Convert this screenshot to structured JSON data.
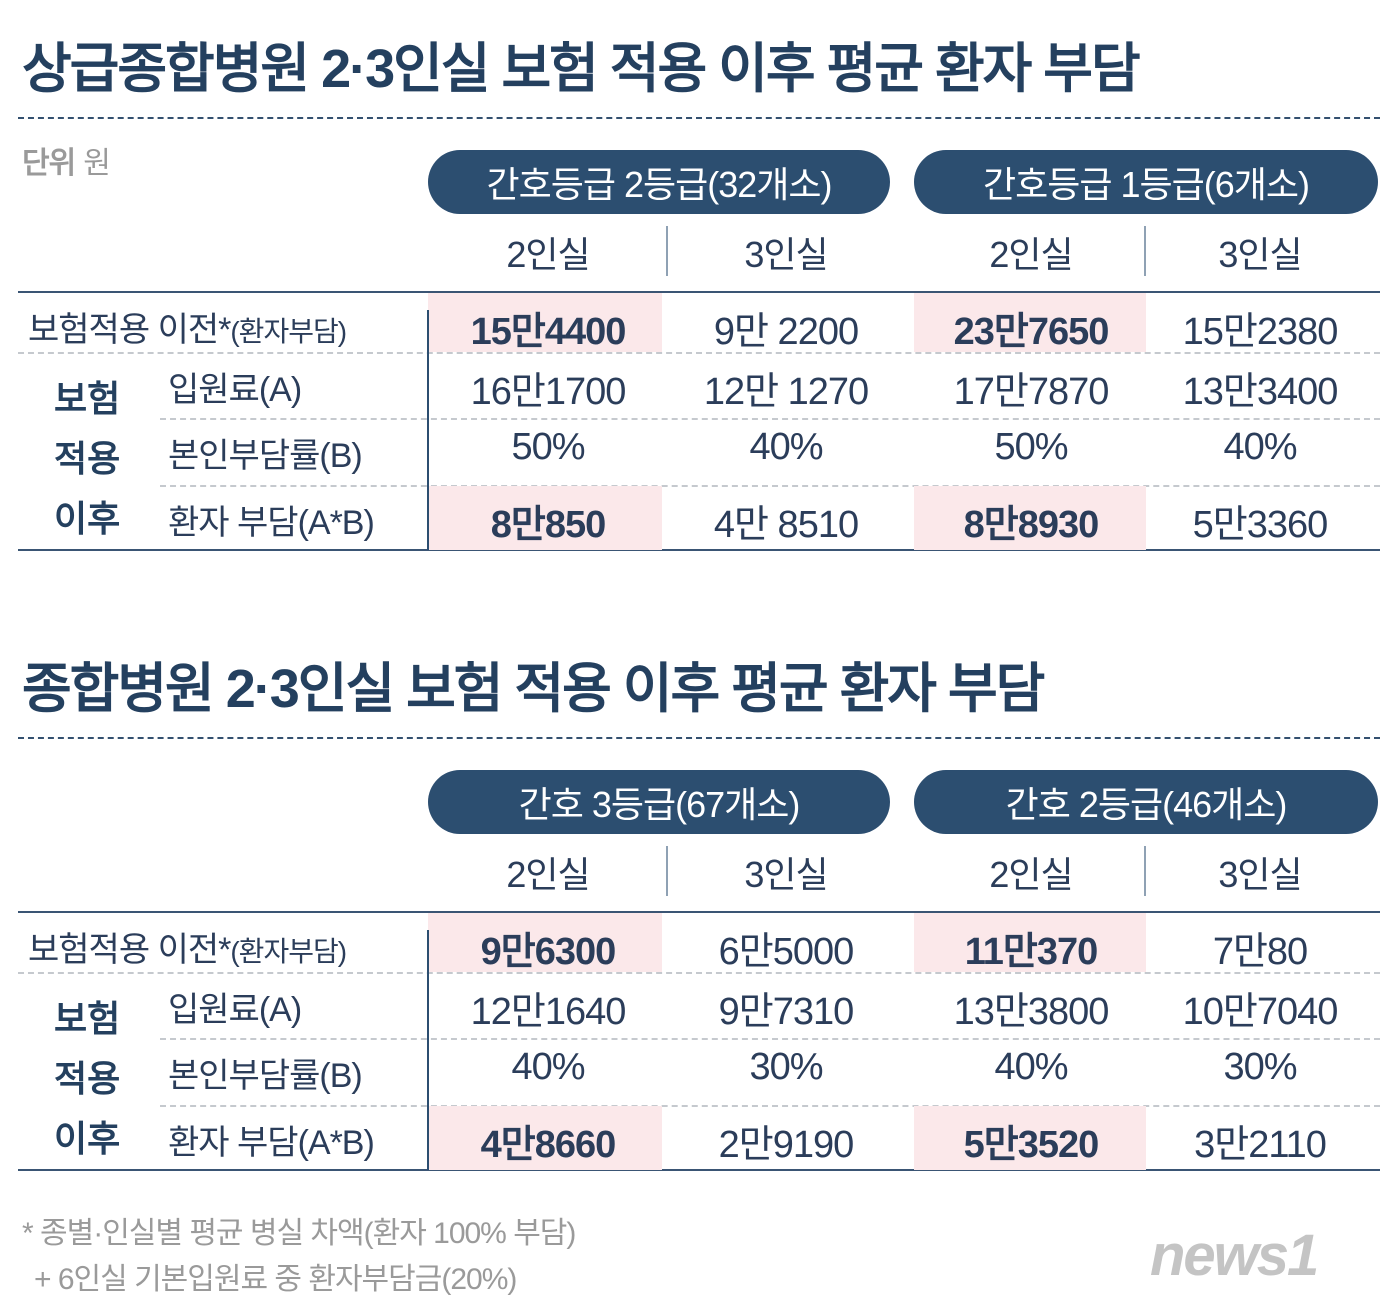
{
  "unit": {
    "label": "단위",
    "value": "원"
  },
  "tables": [
    {
      "title": "상급종합병원 2·3인실 보험 적용 이후 평균 환자 부담",
      "groups": [
        "간호등급 2등급(32개소)",
        "간호등급 1등급(6개소)"
      ],
      "subcols": [
        "2인실",
        "3인실",
        "2인실",
        "3인실"
      ],
      "group_label": [
        "보험",
        "적용",
        "이후"
      ],
      "rows": [
        {
          "label": "보험적용 이전*",
          "label_note": "(환자부담)",
          "values": [
            "15만4400",
            "9만 2200",
            "23만7650",
            "15만2380"
          ],
          "highlight": true
        },
        {
          "label": "입원료(A)",
          "values": [
            "16만1700",
            "12만 1270",
            "17만7870",
            "13만3400"
          ],
          "highlight": false
        },
        {
          "label": "본인부담률(B)",
          "values": [
            "50%",
            "40%",
            "50%",
            "40%"
          ],
          "highlight": false
        },
        {
          "label": "환자 부담(A*B)",
          "values": [
            "8만850",
            "4만 8510",
            "8만8930",
            "5만3360"
          ],
          "highlight": true
        }
      ]
    },
    {
      "title": "종합병원 2·3인실 보험 적용 이후 평균 환자 부담",
      "groups": [
        "간호 3등급(67개소)",
        "간호 2등급(46개소)"
      ],
      "subcols": [
        "2인실",
        "3인실",
        "2인실",
        "3인실"
      ],
      "group_label": [
        "보험",
        "적용",
        "이후"
      ],
      "rows": [
        {
          "label": "보험적용 이전*",
          "label_note": "(환자부담)",
          "values": [
            "9만6300",
            "6만5000",
            "11만370",
            "7만80"
          ],
          "highlight": true
        },
        {
          "label": "입원료(A)",
          "values": [
            "12만1640",
            "9만7310",
            "13만3800",
            "10만7040"
          ],
          "highlight": false
        },
        {
          "label": "본인부담률(B)",
          "values": [
            "40%",
            "30%",
            "40%",
            "30%"
          ],
          "highlight": false
        },
        {
          "label": "환자 부담(A*B)",
          "values": [
            "4만8660",
            "2만9190",
            "5만3520",
            "3만2110"
          ],
          "highlight": true
        }
      ]
    }
  ],
  "footnotes": [
    "* 종별·인실별 평균 병실 차액(환자 100% 부담)",
    "+ 6인실 기본입원료 중 환자부담금(20%)"
  ],
  "logo": "news1",
  "colors": {
    "navy": "#2c4e70",
    "text": "#2b3d5a",
    "highlight": "#fbe8ea",
    "muted": "#9a9a9a"
  }
}
